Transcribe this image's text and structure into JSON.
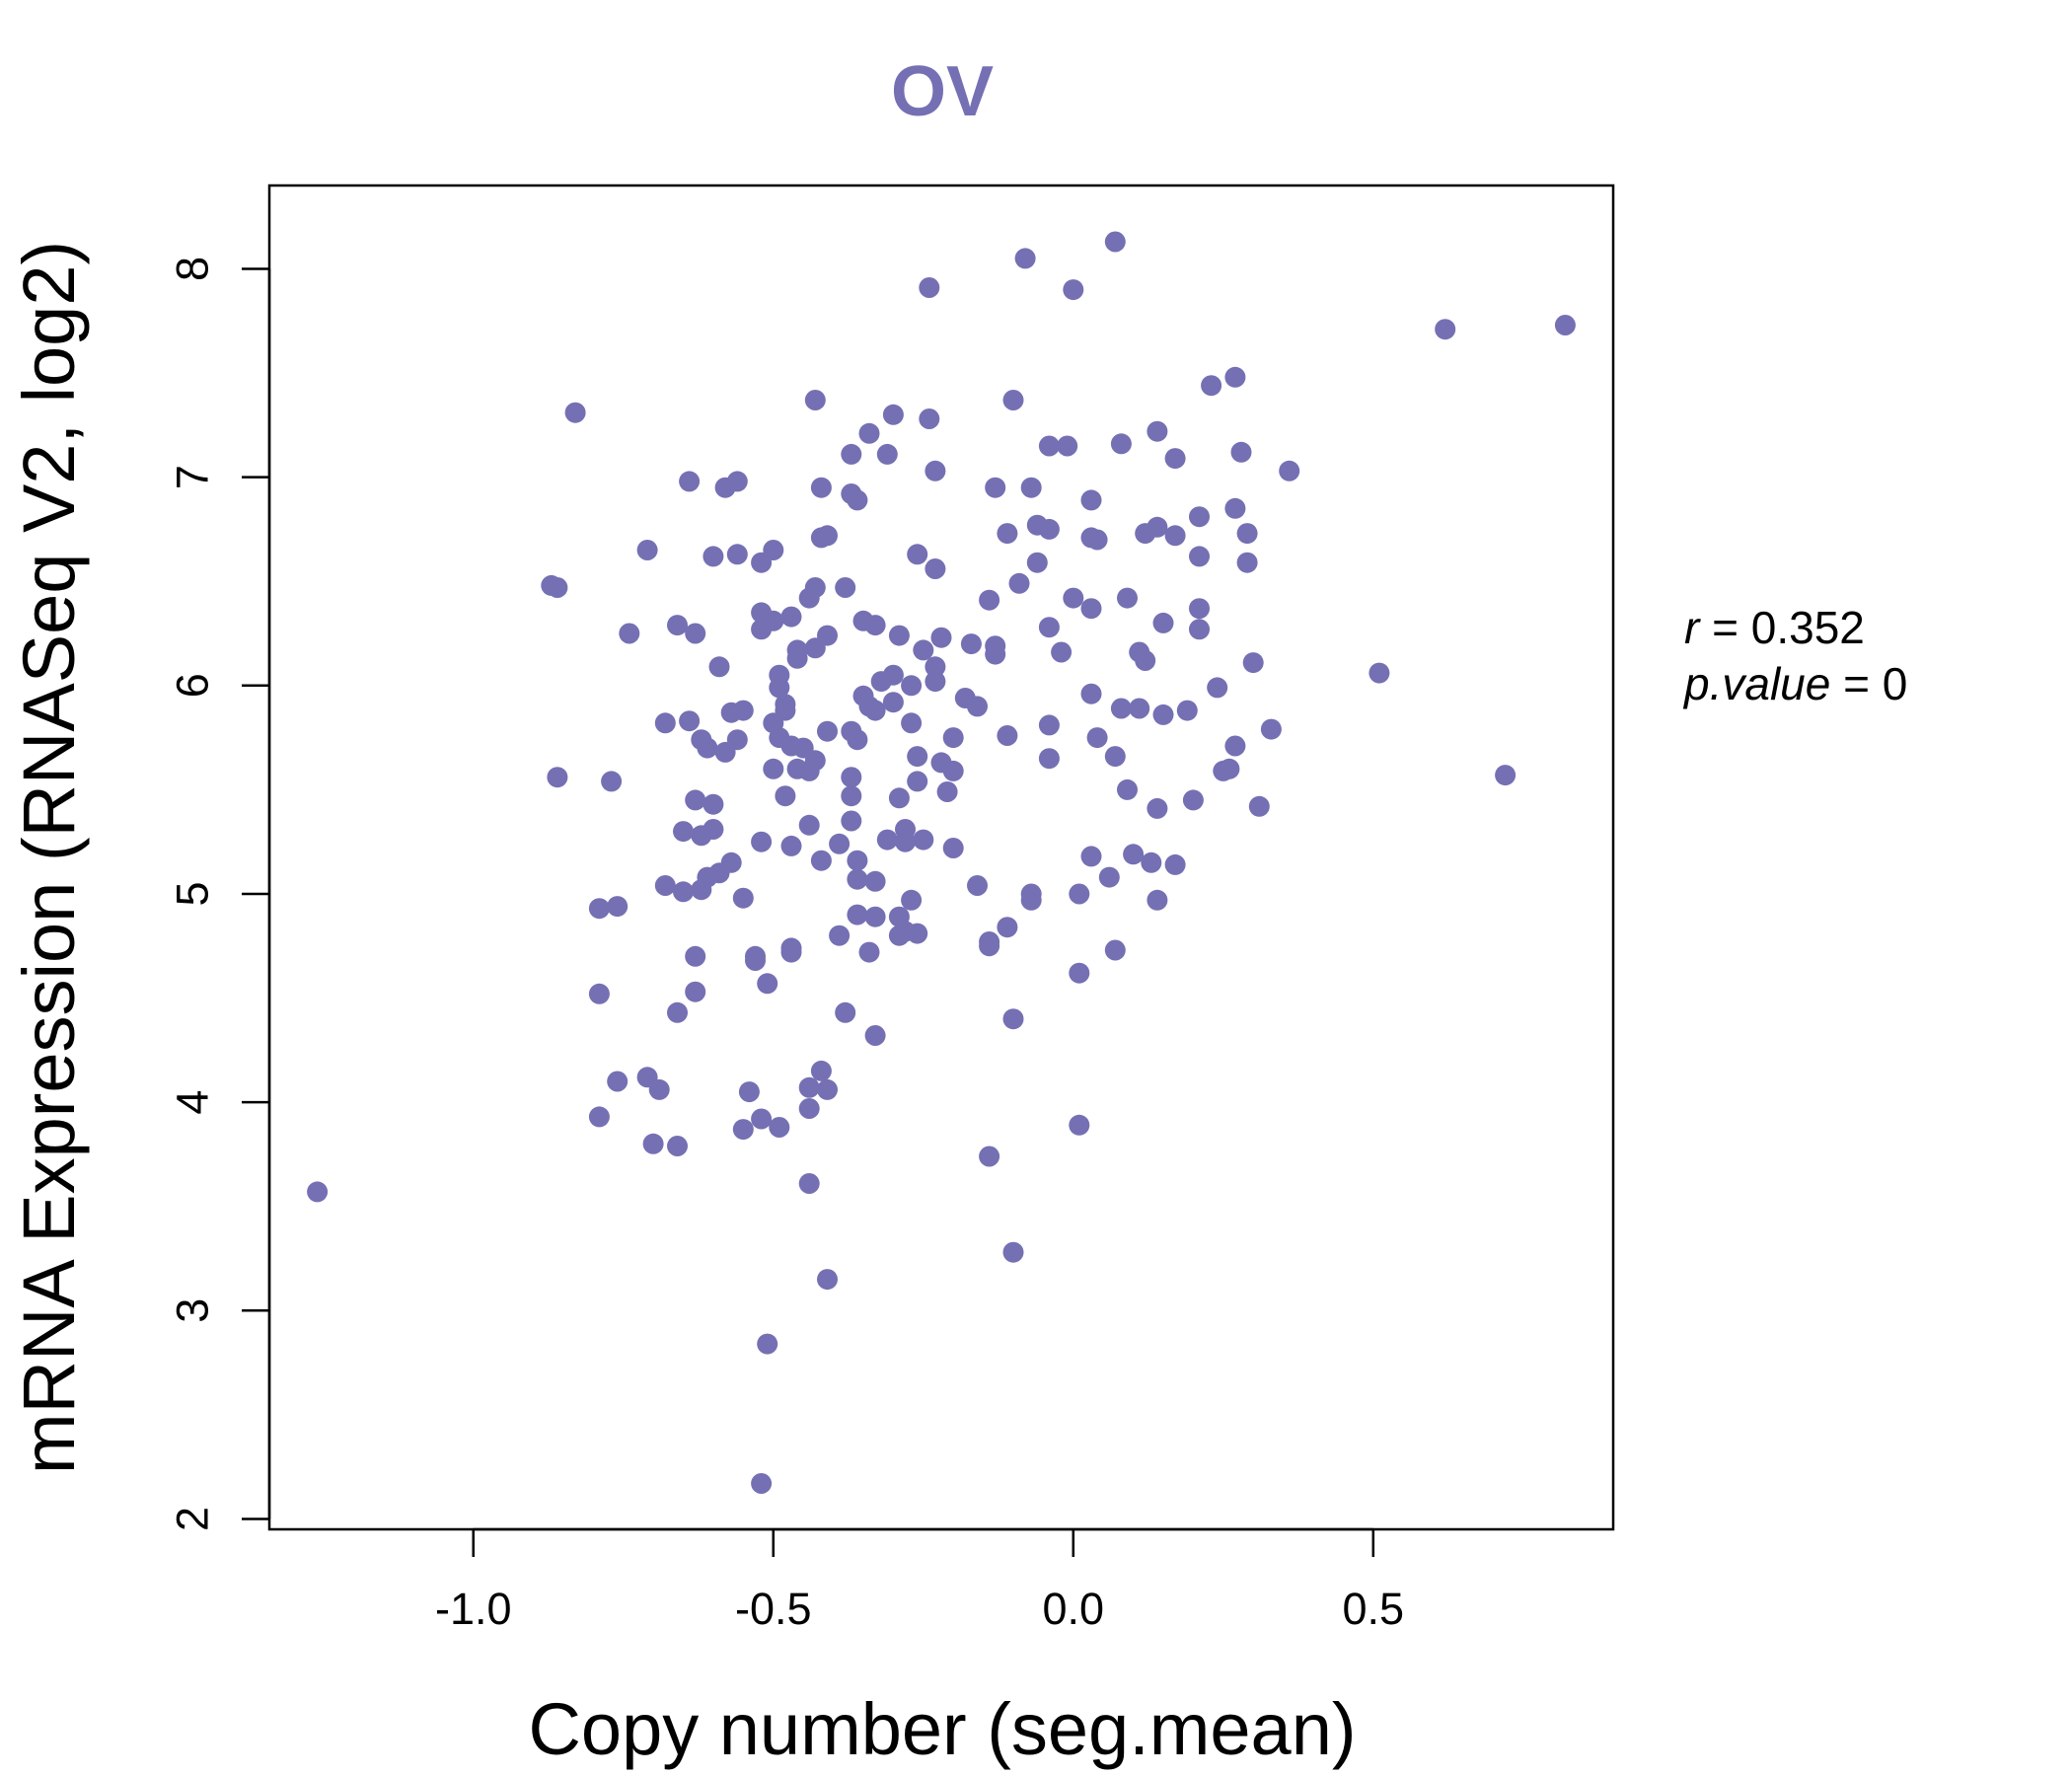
{
  "chart_data": {
    "type": "scatter",
    "title": "OV",
    "xlabel": "Copy number (seg.mean)",
    "ylabel": "mRNA Expression (RNASeq V2, log2)",
    "xlim": [
      -1.34,
      0.9
    ],
    "ylim": [
      1.95,
      8.4
    ],
    "xticks": [
      -1.0,
      -0.5,
      0.0,
      0.5
    ],
    "xtick_labels": [
      "-1.0",
      "-0.5",
      "0.0",
      "0.5"
    ],
    "yticks": [
      2,
      3,
      4,
      5,
      6,
      7,
      8
    ],
    "ytick_labels": [
      "2",
      "3",
      "4",
      "5",
      "6",
      "7",
      "8"
    ],
    "grid": false,
    "colors": {
      "points": "#7570b3",
      "title": "#7570b3",
      "axes": "#000000"
    },
    "annotation": {
      "r_label": "r",
      "r_value": "0.352",
      "p_label": "p.value",
      "p_value": "0",
      "equals": "="
    },
    "points": [
      [
        -1.26,
        3.57
      ],
      [
        -0.83,
        7.31
      ],
      [
        -0.86,
        6.47
      ],
      [
        -0.87,
        6.48
      ],
      [
        -0.86,
        5.56
      ],
      [
        -0.77,
        5.54
      ],
      [
        -0.79,
        4.93
      ],
      [
        -0.76,
        4.94
      ],
      [
        -0.79,
        4.52
      ],
      [
        -0.76,
        4.1
      ],
      [
        -0.79,
        3.93
      ],
      [
        -0.71,
        6.65
      ],
      [
        -0.74,
        6.25
      ],
      [
        -0.64,
        6.98
      ],
      [
        -0.58,
        6.95
      ],
      [
        -0.56,
        6.98
      ],
      [
        -0.6,
        6.62
      ],
      [
        -0.56,
        6.63
      ],
      [
        -0.52,
        6.59
      ],
      [
        -0.5,
        6.65
      ],
      [
        -0.66,
        6.29
      ],
      [
        -0.63,
        6.25
      ],
      [
        -0.59,
        6.09
      ],
      [
        -0.68,
        5.82
      ],
      [
        -0.64,
        5.83
      ],
      [
        -0.62,
        5.74
      ],
      [
        -0.61,
        5.7
      ],
      [
        -0.58,
        5.68
      ],
      [
        -0.57,
        5.87
      ],
      [
        -0.55,
        5.88
      ],
      [
        -0.56,
        5.74
      ],
      [
        -0.63,
        5.45
      ],
      [
        -0.6,
        5.43
      ],
      [
        -0.65,
        5.3
      ],
      [
        -0.62,
        5.28
      ],
      [
        -0.6,
        5.31
      ],
      [
        -0.61,
        5.08
      ],
      [
        -0.59,
        5.1
      ],
      [
        -0.57,
        5.15
      ],
      [
        -0.52,
        5.25
      ],
      [
        -0.65,
        5.01
      ],
      [
        -0.62,
        5.02
      ],
      [
        -0.68,
        5.04
      ],
      [
        -0.55,
        4.98
      ],
      [
        -0.63,
        4.7
      ],
      [
        -0.63,
        4.53
      ],
      [
        -0.66,
        4.43
      ],
      [
        -0.53,
        4.7
      ],
      [
        -0.53,
        4.68
      ],
      [
        -0.51,
        4.57
      ],
      [
        -0.71,
        4.12
      ],
      [
        -0.69,
        4.06
      ],
      [
        -0.54,
        4.05
      ],
      [
        -0.52,
        3.92
      ],
      [
        -0.55,
        3.87
      ],
      [
        -0.7,
        3.8
      ],
      [
        -0.66,
        3.79
      ],
      [
        -0.49,
        3.88
      ],
      [
        -0.44,
        4.07
      ],
      [
        -0.42,
        4.15
      ],
      [
        -0.41,
        4.06
      ],
      [
        -0.44,
        3.97
      ],
      [
        -0.44,
        3.61
      ],
      [
        -0.41,
        3.15
      ],
      [
        -0.51,
        2.84
      ],
      [
        -0.52,
        2.17
      ],
      [
        -0.52,
        6.35
      ],
      [
        -0.5,
        6.31
      ],
      [
        -0.52,
        6.27
      ],
      [
        -0.47,
        6.33
      ],
      [
        -0.44,
        6.42
      ],
      [
        -0.43,
        6.47
      ],
      [
        -0.38,
        6.47
      ],
      [
        -0.41,
        6.24
      ],
      [
        -0.43,
        6.18
      ],
      [
        -0.46,
        6.17
      ],
      [
        -0.46,
        6.13
      ],
      [
        -0.49,
        6.05
      ],
      [
        -0.49,
        5.99
      ],
      [
        -0.48,
        5.91
      ],
      [
        -0.48,
        5.88
      ],
      [
        -0.5,
        5.82
      ],
      [
        -0.49,
        5.75
      ],
      [
        -0.47,
        5.71
      ],
      [
        -0.45,
        5.7
      ],
      [
        -0.43,
        5.64
      ],
      [
        -0.46,
        5.6
      ],
      [
        -0.44,
        5.59
      ],
      [
        -0.5,
        5.6
      ],
      [
        -0.48,
        5.47
      ],
      [
        -0.41,
        5.78
      ],
      [
        -0.37,
        5.78
      ],
      [
        -0.36,
        5.74
      ],
      [
        -0.37,
        5.56
      ],
      [
        -0.37,
        5.47
      ],
      [
        -0.37,
        5.35
      ],
      [
        -0.44,
        5.33
      ],
      [
        -0.39,
        5.24
      ],
      [
        -0.36,
        5.16
      ],
      [
        -0.42,
        5.16
      ],
      [
        -0.36,
        5.07
      ],
      [
        -0.33,
        5.06
      ],
      [
        -0.47,
        5.23
      ],
      [
        -0.47,
        4.74
      ],
      [
        -0.47,
        4.72
      ],
      [
        -0.39,
        4.8
      ],
      [
        -0.36,
        4.9
      ],
      [
        -0.33,
        4.89
      ],
      [
        -0.34,
        4.72
      ],
      [
        -0.38,
        4.43
      ],
      [
        -0.33,
        4.32
      ],
      [
        -0.42,
        6.71
      ],
      [
        -0.41,
        6.72
      ],
      [
        -0.42,
        6.95
      ],
      [
        -0.37,
        6.92
      ],
      [
        -0.36,
        6.89
      ],
      [
        -0.37,
        7.11
      ],
      [
        -0.34,
        7.21
      ],
      [
        -0.31,
        7.11
      ],
      [
        -0.3,
        7.3
      ],
      [
        -0.43,
        7.37
      ],
      [
        -0.35,
        6.31
      ],
      [
        -0.33,
        6.29
      ],
      [
        -0.29,
        6.24
      ],
      [
        -0.3,
        6.05
      ],
      [
        -0.32,
        6.02
      ],
      [
        -0.3,
        5.92
      ],
      [
        -0.33,
        5.88
      ],
      [
        -0.35,
        5.95
      ],
      [
        -0.34,
        5.9
      ],
      [
        -0.27,
        6.0
      ],
      [
        -0.25,
        6.17
      ],
      [
        -0.26,
        6.63
      ],
      [
        -0.23,
        6.56
      ],
      [
        -0.23,
        7.03
      ],
      [
        -0.24,
        7.28
      ],
      [
        -0.24,
        7.91
      ],
      [
        -0.22,
        6.23
      ],
      [
        -0.23,
        6.09
      ],
      [
        -0.23,
        6.02
      ],
      [
        -0.27,
        5.82
      ],
      [
        -0.26,
        5.66
      ],
      [
        -0.26,
        5.54
      ],
      [
        -0.22,
        5.63
      ],
      [
        -0.21,
        5.49
      ],
      [
        -0.2,
        5.59
      ],
      [
        -0.29,
        5.46
      ],
      [
        -0.31,
        5.26
      ],
      [
        -0.28,
        5.31
      ],
      [
        -0.28,
        5.25
      ],
      [
        -0.25,
        5.26
      ],
      [
        -0.2,
        5.22
      ],
      [
        -0.27,
        4.97
      ],
      [
        -0.29,
        4.89
      ],
      [
        -0.28,
        4.82
      ],
      [
        -0.29,
        4.8
      ],
      [
        -0.26,
        4.81
      ],
      [
        -0.2,
        5.75
      ],
      [
        -0.17,
        6.2
      ],
      [
        -0.18,
        5.94
      ],
      [
        -0.16,
        5.9
      ],
      [
        -0.16,
        5.04
      ],
      [
        -0.14,
        6.41
      ],
      [
        -0.13,
        6.19
      ],
      [
        -0.13,
        6.15
      ],
      [
        -0.13,
        6.95
      ],
      [
        -0.11,
        6.73
      ],
      [
        -0.1,
        7.37
      ],
      [
        -0.07,
        6.95
      ],
      [
        -0.09,
        6.49
      ],
      [
        -0.06,
        6.59
      ],
      [
        -0.06,
        6.77
      ],
      [
        -0.04,
        6.75
      ],
      [
        -0.04,
        7.15
      ],
      [
        -0.01,
        7.15
      ],
      [
        0.0,
        7.9
      ],
      [
        -0.08,
        8.05
      ],
      [
        -0.04,
        6.28
      ],
      [
        -0.02,
        6.16
      ],
      [
        0.0,
        6.42
      ],
      [
        0.03,
        6.37
      ],
      [
        -0.11,
        5.76
      ],
      [
        -0.04,
        5.81
      ],
      [
        -0.04,
        5.65
      ],
      [
        -0.14,
        4.77
      ],
      [
        -0.14,
        4.75
      ],
      [
        -0.11,
        4.84
      ],
      [
        -0.07,
        4.97
      ],
      [
        -0.07,
        5.0
      ],
      [
        -0.1,
        4.4
      ],
      [
        -0.14,
        3.74
      ],
      [
        -0.1,
        3.28
      ],
      [
        0.01,
        5.0
      ],
      [
        0.01,
        4.62
      ],
      [
        0.01,
        3.89
      ],
      [
        0.03,
        5.18
      ],
      [
        0.06,
        5.08
      ],
      [
        0.08,
        5.89
      ],
      [
        0.03,
        5.96
      ],
      [
        0.04,
        5.75
      ],
      [
        0.07,
        5.66
      ],
      [
        0.09,
        5.5
      ],
      [
        0.07,
        4.73
      ],
      [
        0.1,
        5.19
      ],
      [
        0.03,
        6.89
      ],
      [
        0.03,
        6.71
      ],
      [
        0.04,
        6.7
      ],
      [
        0.08,
        7.16
      ],
      [
        0.07,
        8.13
      ],
      [
        0.09,
        6.42
      ],
      [
        0.11,
        6.16
      ],
      [
        0.12,
        6.12
      ],
      [
        0.11,
        5.89
      ],
      [
        0.15,
        6.3
      ],
      [
        0.15,
        5.86
      ],
      [
        0.12,
        6.73
      ],
      [
        0.14,
        6.76
      ],
      [
        0.17,
        6.72
      ],
      [
        0.14,
        7.22
      ],
      [
        0.17,
        7.09
      ],
      [
        0.14,
        5.41
      ],
      [
        0.13,
        5.15
      ],
      [
        0.17,
        5.14
      ],
      [
        0.14,
        4.97
      ],
      [
        0.2,
        5.45
      ],
      [
        0.19,
        5.88
      ],
      [
        0.21,
        6.27
      ],
      [
        0.21,
        6.37
      ],
      [
        0.21,
        6.62
      ],
      [
        0.21,
        6.81
      ],
      [
        0.23,
        7.44
      ],
      [
        0.27,
        7.48
      ],
      [
        0.27,
        6.85
      ],
      [
        0.28,
        7.12
      ],
      [
        0.29,
        6.73
      ],
      [
        0.29,
        6.59
      ],
      [
        0.3,
        6.11
      ],
      [
        0.24,
        5.99
      ],
      [
        0.25,
        5.59
      ],
      [
        0.26,
        5.6
      ],
      [
        0.27,
        5.71
      ],
      [
        0.31,
        5.42
      ],
      [
        0.33,
        5.79
      ],
      [
        0.36,
        7.03
      ],
      [
        0.51,
        6.06
      ],
      [
        0.62,
        7.71
      ],
      [
        0.72,
        5.57
      ],
      [
        0.82,
        7.73
      ]
    ]
  }
}
